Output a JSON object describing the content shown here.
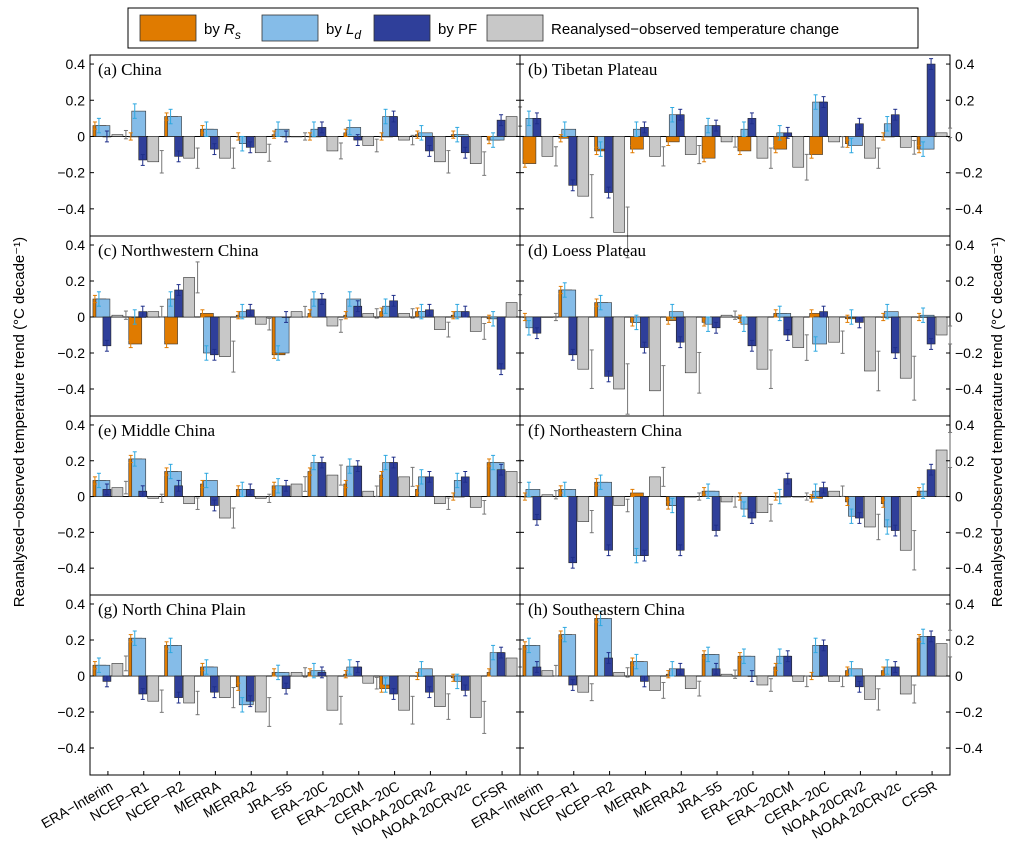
{
  "chart_data": {
    "type": "bar",
    "ylabel": "Reanalysed−observed temperature trend (°C decade⁻¹)",
    "ylim": [
      -0.55,
      0.45
    ],
    "yticks": [
      -0.4,
      -0.2,
      0,
      0.2,
      0.4
    ],
    "ytick_labels": [
      "−0.4",
      "−0.2",
      "0",
      "0.2",
      "0.4"
    ],
    "categories": [
      "ERA−Interim",
      "NCEP−R1",
      "NCEP−R2",
      "MERRA",
      "MERRA2",
      "JRA−55",
      "ERA−20C",
      "ERA−20CM",
      "CERA−20C",
      "NOAA 20CRv2",
      "NOAA 20CRv2c",
      "CFSR"
    ],
    "legend": {
      "placement": "top-center",
      "entries": [
        {
          "prefix": "by ",
          "sym": "R",
          "sub": "s",
          "color": "#E07B00"
        },
        {
          "prefix": "by ",
          "sym": "L",
          "sub": "d",
          "color": "#85BCE8"
        },
        {
          "prefix": "by PF",
          "sym": "",
          "sub": "",
          "color": "#2F3F9A"
        },
        {
          "prefix": "Reanalysed−observed temperature change",
          "sym": "",
          "sub": "",
          "color": "#C8C8C8"
        }
      ]
    },
    "panels": [
      {
        "title": "(a) China",
        "rs": [
          0.06,
          0.0,
          0.11,
          0.04,
          0.0,
          0.01,
          0.0,
          0.02,
          0.0,
          0.01,
          0.01,
          -0.02
        ],
        "ld": [
          0.06,
          0.14,
          0.11,
          0.04,
          -0.04,
          0.04,
          0.04,
          0.05,
          0.11,
          0.02,
          0.01,
          -0.02
        ],
        "pf": [
          0.0,
          -0.13,
          -0.11,
          -0.07,
          -0.06,
          0.0,
          0.05,
          -0.02,
          0.11,
          -0.08,
          -0.09,
          0.09
        ],
        "obs": [
          0.01,
          -0.14,
          -0.12,
          -0.12,
          -0.09,
          0.0,
          -0.08,
          -0.05,
          -0.02,
          -0.14,
          -0.15,
          0.11
        ]
      },
      {
        "title": "(b) Tibetan Plateau",
        "rs": [
          -0.15,
          -0.01,
          -0.08,
          -0.07,
          -0.03,
          -0.12,
          -0.08,
          -0.07,
          -0.1,
          -0.04,
          0.0,
          -0.07
        ],
        "ld": [
          0.1,
          0.04,
          -0.07,
          0.04,
          0.12,
          0.06,
          0.04,
          0.02,
          0.19,
          -0.05,
          0.07,
          -0.07
        ],
        "pf": [
          0.1,
          -0.27,
          -0.31,
          0.05,
          0.12,
          0.06,
          0.1,
          0.02,
          0.19,
          0.07,
          0.12,
          0.4
        ],
        "obs": [
          -0.11,
          -0.33,
          -0.53,
          -0.11,
          -0.1,
          -0.03,
          -0.12,
          -0.17,
          -0.03,
          -0.12,
          -0.06,
          0.02
        ]
      },
      {
        "title": "(c) Northwestern China",
        "rs": [
          0.1,
          -0.15,
          -0.15,
          0.02,
          0.01,
          -0.21,
          0.02,
          0.01,
          0.03,
          0.03,
          0.01,
          -0.01
        ],
        "ld": [
          0.1,
          0.0,
          0.1,
          -0.2,
          0.03,
          -0.2,
          0.1,
          0.1,
          0.06,
          0.03,
          0.03,
          -0.01
        ],
        "pf": [
          -0.16,
          0.03,
          0.15,
          -0.21,
          0.04,
          0.0,
          0.1,
          0.06,
          0.09,
          0.04,
          0.03,
          -0.29
        ],
        "obs": [
          0.01,
          0.03,
          0.22,
          -0.22,
          -0.04,
          0.03,
          -0.05,
          0.02,
          0.02,
          -0.07,
          -0.08,
          0.08
        ]
      },
      {
        "title": "(d) Loess Plateau",
        "rs": [
          0.0,
          0.15,
          0.08,
          -0.03,
          -0.02,
          -0.03,
          -0.01,
          0.02,
          0.02,
          -0.01,
          0.0,
          0.0
        ],
        "ld": [
          -0.06,
          0.15,
          0.08,
          -0.03,
          0.03,
          -0.04,
          -0.04,
          0.02,
          -0.15,
          0.0,
          0.03,
          0.01
        ],
        "pf": [
          -0.09,
          -0.21,
          -0.33,
          -0.17,
          -0.14,
          -0.06,
          -0.16,
          -0.1,
          0.03,
          -0.03,
          -0.2,
          -0.15
        ],
        "obs": [
          0.0,
          -0.29,
          -0.4,
          -0.41,
          -0.31,
          0.01,
          -0.29,
          -0.17,
          -0.14,
          -0.3,
          -0.34,
          -0.1
        ]
      },
      {
        "title": "(e) Middle China",
        "rs": [
          0.09,
          0.21,
          0.14,
          0.07,
          0.04,
          0.06,
          0.14,
          0.07,
          0.12,
          0.04,
          0.0,
          0.19
        ],
        "ld": [
          0.09,
          0.21,
          0.14,
          0.09,
          0.04,
          0.06,
          0.19,
          0.17,
          0.19,
          0.11,
          0.09,
          0.19
        ],
        "pf": [
          0.04,
          0.03,
          0.06,
          -0.05,
          0.04,
          0.06,
          0.19,
          0.17,
          0.19,
          0.11,
          0.11,
          0.15
        ],
        "obs": [
          0.05,
          -0.01,
          -0.04,
          -0.12,
          -0.01,
          0.07,
          0.12,
          0.03,
          0.11,
          -0.04,
          -0.06,
          0.14
        ]
      },
      {
        "title": "(f) Northeastern China",
        "rs": [
          0.0,
          0.04,
          0.08,
          0.02,
          -0.05,
          0.03,
          0.0,
          0.0,
          -0.01,
          -0.03,
          -0.04,
          0.03
        ],
        "ld": [
          0.04,
          0.04,
          0.08,
          -0.33,
          -0.05,
          0.03,
          -0.07,
          0.0,
          0.03,
          -0.11,
          -0.17,
          0.03
        ],
        "pf": [
          -0.13,
          -0.37,
          -0.3,
          -0.33,
          -0.3,
          -0.19,
          -0.12,
          0.1,
          0.05,
          -0.12,
          -0.19,
          0.15
        ],
        "obs": [
          0.01,
          -0.14,
          -0.05,
          0.11,
          0.0,
          -0.03,
          -0.09,
          0.0,
          0.03,
          -0.17,
          -0.3,
          0.26
        ]
      },
      {
        "title": "(g) North China Plain",
        "rs": [
          0.06,
          0.21,
          0.17,
          0.05,
          -0.06,
          0.02,
          0.02,
          0.01,
          -0.07,
          0.0,
          -0.01,
          0.02
        ],
        "ld": [
          0.06,
          0.21,
          0.17,
          0.05,
          -0.16,
          0.02,
          0.03,
          0.05,
          -0.05,
          0.04,
          -0.03,
          0.13
        ],
        "pf": [
          -0.03,
          -0.1,
          -0.12,
          -0.09,
          -0.14,
          -0.07,
          0.02,
          0.05,
          -0.1,
          -0.09,
          -0.08,
          0.13
        ],
        "obs": [
          0.07,
          -0.14,
          -0.15,
          -0.12,
          -0.2,
          0.02,
          -0.19,
          -0.04,
          -0.19,
          -0.17,
          -0.23,
          0.1
        ]
      },
      {
        "title": "(h) Southeastern China",
        "rs": [
          0.17,
          0.23,
          0.32,
          0.08,
          0.01,
          0.12,
          0.11,
          0.05,
          0.0,
          0.03,
          0.03,
          0.21
        ],
        "ld": [
          0.17,
          0.23,
          0.32,
          0.08,
          0.04,
          0.12,
          0.11,
          0.11,
          0.17,
          0.04,
          0.05,
          0.22
        ],
        "pf": [
          0.05,
          -0.05,
          0.1,
          -0.03,
          0.04,
          0.04,
          0.0,
          0.11,
          0.17,
          -0.06,
          0.05,
          0.22
        ],
        "obs": [
          0.03,
          -0.09,
          0.02,
          -0.08,
          -0.07,
          0.01,
          -0.05,
          -0.03,
          -0.03,
          -0.13,
          -0.1,
          0.18
        ]
      }
    ]
  }
}
